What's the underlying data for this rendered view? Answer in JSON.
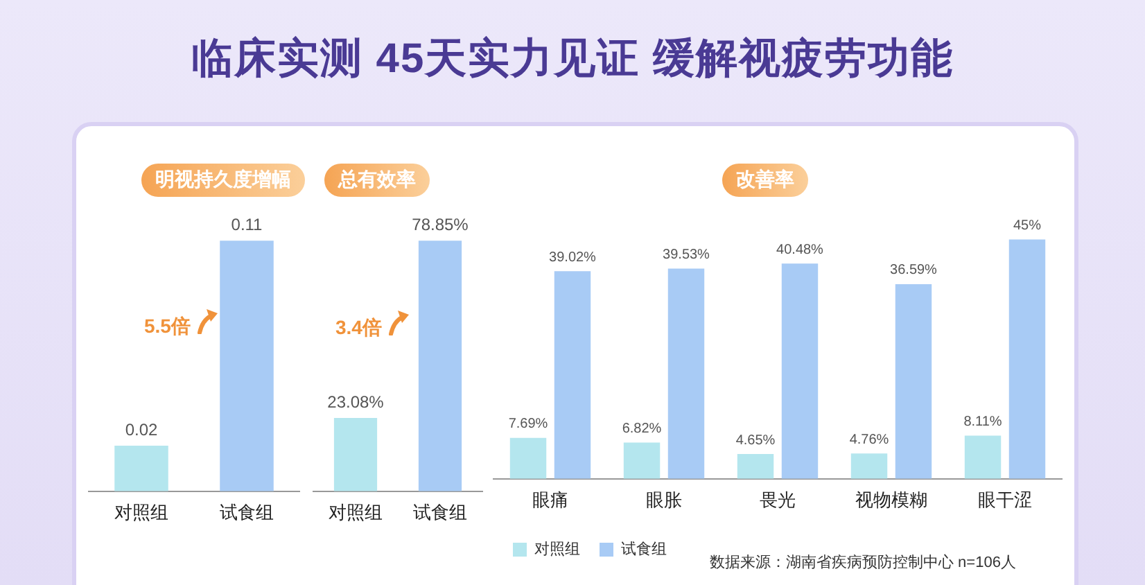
{
  "chart_data": [
    {
      "type": "other",
      "title": "临床实测 45天实力见证 缓解视疲劳功能"
    },
    {
      "type": "bar",
      "title": "明视持久度增幅",
      "categories": [
        "对照组",
        "试食组"
      ],
      "values": [
        0.02,
        0.11
      ],
      "colors": [
        "#b4e6ee",
        "#a8cbf5"
      ],
      "data_labels": true,
      "annotations": [
        "5.5倍"
      ]
    },
    {
      "type": "bar",
      "title": "总有效率",
      "categories": [
        "对照组",
        "试食组"
      ],
      "values": [
        23.08,
        78.85
      ],
      "colors": [
        "#b4e6ee",
        "#a8cbf5"
      ],
      "value_labels": [
        "23.08%",
        "78.85%"
      ],
      "annotations": [
        "3.4倍"
      ]
    },
    {
      "type": "bar",
      "title": "改善率",
      "categories": [
        "眼痛",
        "眼胀",
        "畏光",
        "视物模糊",
        "眼干涩"
      ],
      "legend": "bottom",
      "series": [
        {
          "name": "对照组",
          "color": "#b4e6ee",
          "values": [
            7.69,
            6.82,
            4.65,
            4.76,
            8.11
          ],
          "value_labels": [
            "7.69%",
            "6.82%",
            "4.65%",
            "4.76%",
            "8.11%"
          ]
        },
        {
          "name": "试食组",
          "color": "#a8cbf5",
          "values": [
            39.02,
            39.53,
            40.48,
            36.59,
            45
          ],
          "value_labels": [
            "39.02%",
            "39.53%",
            "40.48%",
            "36.59%",
            "45%"
          ]
        }
      ],
      "annotations": [
        "数据来源：湖南省疾病预防控制中心  n=106人"
      ]
    }
  ]
}
